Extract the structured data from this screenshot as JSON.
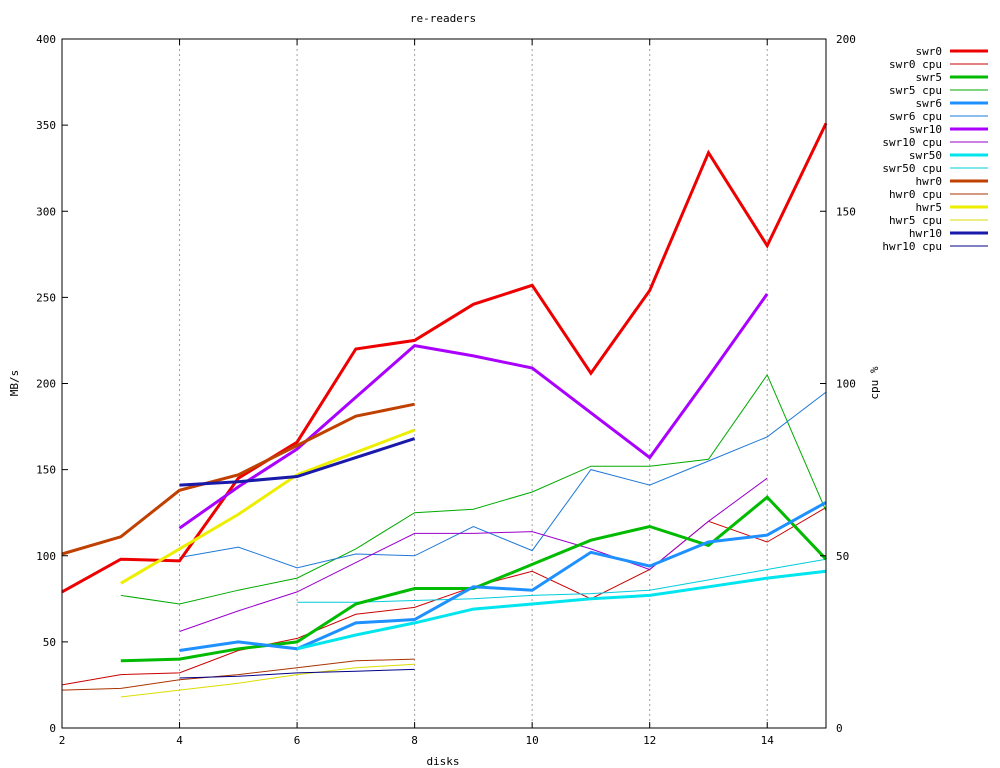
{
  "chart_data": {
    "type": "line",
    "title": "re-readers",
    "xlabel": "disks",
    "ylabel": "MB/s",
    "y2label": "cpu %",
    "xlim": [
      2,
      15
    ],
    "ylim": [
      0,
      400
    ],
    "y2lim": [
      0,
      200
    ],
    "xticks": [
      2,
      4,
      6,
      8,
      10,
      12,
      14
    ],
    "yticks": [
      0,
      50,
      100,
      150,
      200,
      250,
      300,
      350,
      400
    ],
    "y2ticks": [
      0,
      50,
      100,
      150,
      200
    ],
    "grid_x": true,
    "grid_y": false,
    "legend_position": "top-right",
    "series": [
      {
        "name": "swr0",
        "color": "#ee0000",
        "width": 3,
        "axis": "y",
        "x": [
          2,
          3,
          4,
          5,
          6,
          7,
          8,
          9,
          10,
          11,
          12,
          13,
          14,
          15
        ],
        "values": [
          79,
          98,
          97,
          145,
          166,
          220,
          225,
          246,
          257,
          206,
          254,
          334,
          280,
          351
        ]
      },
      {
        "name": "swr0 cpu",
        "color": "#cc0000",
        "width": 1,
        "axis": "y2",
        "x": [
          2,
          3,
          4,
          5,
          6,
          7,
          8,
          9,
          10,
          11,
          12,
          13,
          14,
          15
        ],
        "values": [
          12.5,
          15.5,
          16,
          22.5,
          26,
          33,
          35,
          41,
          45.5,
          37.5,
          46,
          60,
          54,
          64
        ]
      },
      {
        "name": "swr5",
        "color": "#00bb00",
        "width": 3,
        "axis": "y",
        "x": [
          3,
          4,
          5,
          6,
          7,
          8,
          9,
          10,
          11,
          12,
          13,
          14,
          15
        ],
        "values": [
          39,
          40,
          46,
          50,
          72,
          81,
          81,
          95,
          109,
          117,
          106,
          134,
          98
        ]
      },
      {
        "name": "swr5 cpu",
        "color": "#00aa00",
        "width": 1,
        "axis": "y2",
        "x": [
          3,
          4,
          5,
          6,
          7,
          8,
          9,
          10,
          11,
          12,
          13,
          14,
          15
        ],
        "values": [
          38.5,
          36,
          40,
          43.5,
          52,
          62.5,
          63.5,
          68.5,
          76,
          76,
          78,
          102.5,
          63
        ]
      },
      {
        "name": "swr6",
        "color": "#1e90ff",
        "width": 3,
        "axis": "y",
        "x": [
          4,
          5,
          6,
          7,
          8,
          9,
          10,
          11,
          12,
          13,
          14,
          15
        ],
        "values": [
          45,
          50,
          46,
          61,
          63,
          82,
          80,
          102,
          94,
          108,
          112,
          131
        ]
      },
      {
        "name": "swr6 cpu",
        "color": "#1e78d8",
        "width": 1,
        "axis": "y2",
        "x": [
          4,
          5,
          6,
          7,
          8,
          9,
          10,
          11,
          12,
          13,
          14,
          15
        ],
        "values": [
          49.5,
          52.5,
          46.5,
          50.5,
          50,
          58.5,
          51.5,
          75,
          70.5,
          77.5,
          84.5,
          97.5
        ]
      },
      {
        "name": "swr10",
        "color": "#aa00ff",
        "width": 3,
        "axis": "y",
        "x": [
          4,
          5,
          6,
          7,
          8,
          9,
          10,
          11,
          12,
          13,
          14
        ],
        "values": [
          116,
          140,
          162,
          192,
          222,
          216,
          209,
          183,
          157,
          204,
          252
        ]
      },
      {
        "name": "swr10 cpu",
        "color": "#9900cc",
        "width": 1,
        "axis": "y2",
        "x": [
          4,
          5,
          6,
          7,
          8,
          9,
          10,
          11,
          12,
          13,
          14
        ],
        "values": [
          28,
          34,
          39.5,
          48,
          56.5,
          56.5,
          57,
          52,
          46,
          60,
          72.5
        ]
      },
      {
        "name": "swr50",
        "color": "#00e5ee",
        "width": 3,
        "axis": "y",
        "x": [
          6,
          7,
          8,
          9,
          10,
          11,
          12,
          13,
          14,
          15
        ],
        "values": [
          46,
          54,
          61,
          69,
          72,
          75,
          77,
          82,
          87,
          91
        ]
      },
      {
        "name": "swr50 cpu",
        "color": "#00ccdd",
        "width": 1,
        "axis": "y2",
        "x": [
          6,
          7,
          8,
          9,
          10,
          11,
          12,
          13,
          14,
          15
        ],
        "values": [
          36.5,
          36.5,
          37,
          37.5,
          38.5,
          39,
          40,
          43,
          46,
          49
        ]
      },
      {
        "name": "hwr0",
        "color": "#c04000",
        "width": 3,
        "axis": "y",
        "x": [
          2,
          3,
          4,
          5,
          6,
          7,
          8
        ],
        "values": [
          101,
          111,
          138,
          147,
          164,
          181,
          188
        ]
      },
      {
        "name": "hwr0 cpu",
        "color": "#aa3300",
        "width": 1,
        "axis": "y2",
        "x": [
          2,
          3,
          4,
          5,
          6,
          7,
          8
        ],
        "values": [
          11,
          11.5,
          14,
          15.5,
          17.5,
          19.5,
          20
        ]
      },
      {
        "name": "hwr5",
        "color": "#eeee00",
        "width": 3,
        "axis": "y",
        "x": [
          3,
          4,
          5,
          6,
          7,
          8
        ],
        "values": [
          84,
          104,
          124,
          147,
          160,
          173
        ]
      },
      {
        "name": "hwr5 cpu",
        "color": "#dddd00",
        "width": 1,
        "axis": "y2",
        "x": [
          3,
          4,
          5,
          6,
          7,
          8
        ],
        "values": [
          9,
          11,
          13,
          15.5,
          17.5,
          18.5
        ]
      },
      {
        "name": "hwr10",
        "color": "#1a1aaa",
        "width": 3,
        "axis": "y",
        "x": [
          4,
          5,
          6,
          7,
          8
        ],
        "values": [
          141,
          143,
          146,
          157,
          168
        ]
      },
      {
        "name": "hwr10 cpu",
        "color": "#000088",
        "width": 1,
        "axis": "y2",
        "x": [
          4,
          5,
          6,
          7,
          8
        ],
        "values": [
          14.5,
          15,
          16,
          16.5,
          17
        ]
      }
    ]
  }
}
